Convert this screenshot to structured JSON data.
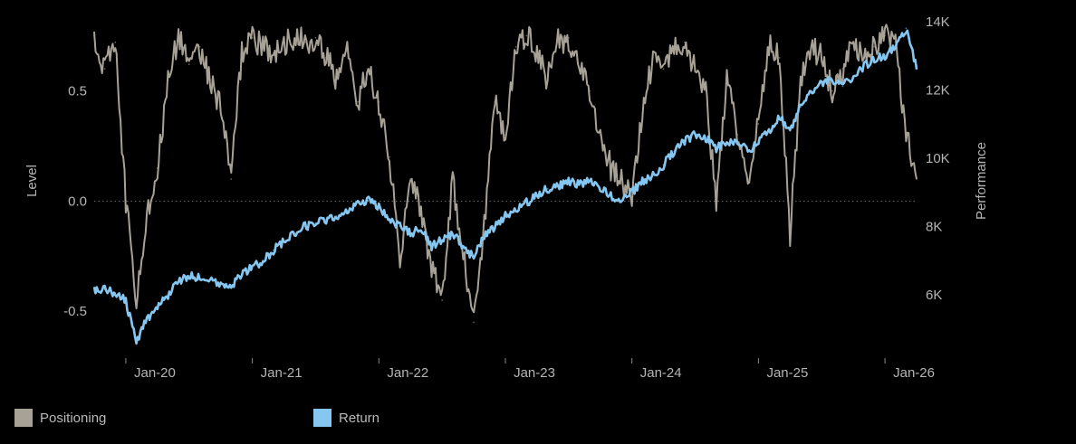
{
  "chart_data": {
    "type": "line",
    "title": "",
    "y_left": {
      "label": "Level",
      "ticks": [
        0.5,
        0.0,
        -0.5
      ],
      "tick_labels": [
        "0.5",
        "0.0",
        "-0.5"
      ],
      "range": [
        -0.7,
        0.83
      ]
    },
    "y_right": {
      "label": "Performance",
      "ticks": [
        6000,
        8000,
        10000,
        12000,
        14000
      ],
      "tick_labels": [
        "6K",
        "8K",
        "10K",
        "12K",
        "14K"
      ],
      "range": [
        4220,
        14100
      ]
    },
    "x": {
      "ticks": [
        "2020-01",
        "2021-01",
        "2022-01",
        "2023-01",
        "2024-01",
        "2025-01",
        "2026-01"
      ],
      "tick_labels": [
        "Jan-20",
        "Jan-21",
        "Jan-22",
        "Jan-23",
        "Jan-24",
        "Jan-25",
        "Jan-26"
      ],
      "range": [
        "2019-10",
        "2026-04"
      ]
    },
    "zero_line": {
      "value": 0.0,
      "style": "dotted"
    },
    "grid": false,
    "legend_position": "bottom-left",
    "series": [
      {
        "name": "Positioning",
        "axis": "left",
        "color": "#a8a196",
        "points": [
          [
            "2019-10",
            0.75
          ],
          [
            "2019-11",
            0.6
          ],
          [
            "2019-12",
            0.72
          ],
          [
            "2020-01",
            0.0
          ],
          [
            "2020-02",
            -0.45
          ],
          [
            "2020-03",
            -0.05
          ],
          [
            "2020-04",
            0.15
          ],
          [
            "2020-05",
            0.55
          ],
          [
            "2020-06",
            0.75
          ],
          [
            "2020-07",
            0.62
          ],
          [
            "2020-08",
            0.7
          ],
          [
            "2020-09",
            0.55
          ],
          [
            "2020-10",
            0.42
          ],
          [
            "2020-11",
            0.1
          ],
          [
            "2020-12",
            0.68
          ],
          [
            "2021-01",
            0.74
          ],
          [
            "2021-02",
            0.7
          ],
          [
            "2021-03",
            0.67
          ],
          [
            "2021-04",
            0.72
          ],
          [
            "2021-05",
            0.74
          ],
          [
            "2021-06",
            0.72
          ],
          [
            "2021-07",
            0.74
          ],
          [
            "2021-08",
            0.65
          ],
          [
            "2021-09",
            0.55
          ],
          [
            "2021-10",
            0.68
          ],
          [
            "2021-11",
            0.45
          ],
          [
            "2021-12",
            0.6
          ],
          [
            "2022-01",
            0.45
          ],
          [
            "2022-02",
            0.2
          ],
          [
            "2022-03",
            -0.25
          ],
          [
            "2022-04",
            0.1
          ],
          [
            "2022-05",
            -0.05
          ],
          [
            "2022-06",
            -0.3
          ],
          [
            "2022-07",
            -0.45
          ],
          [
            "2022-08",
            0.1
          ],
          [
            "2022-09",
            -0.25
          ],
          [
            "2022-10",
            -0.55
          ],
          [
            "2022-11",
            -0.1
          ],
          [
            "2022-12",
            0.45
          ],
          [
            "2023-01",
            0.3
          ],
          [
            "2023-02",
            0.7
          ],
          [
            "2023-03",
            0.75
          ],
          [
            "2023-04",
            0.68
          ],
          [
            "2023-05",
            0.55
          ],
          [
            "2023-06",
            0.72
          ],
          [
            "2023-07",
            0.74
          ],
          [
            "2023-08",
            0.6
          ],
          [
            "2023-09",
            0.5
          ],
          [
            "2023-10",
            0.3
          ],
          [
            "2023-11",
            0.15
          ],
          [
            "2023-12",
            0.1
          ],
          [
            "2024-01",
            0.0
          ],
          [
            "2024-02",
            0.4
          ],
          [
            "2024-03",
            0.65
          ],
          [
            "2024-04",
            0.6
          ],
          [
            "2024-05",
            0.7
          ],
          [
            "2024-06",
            0.72
          ],
          [
            "2024-07",
            0.6
          ],
          [
            "2024-08",
            0.5
          ],
          [
            "2024-09",
            0.0
          ],
          [
            "2024-10",
            0.55
          ],
          [
            "2024-11",
            0.3
          ],
          [
            "2024-12",
            0.1
          ],
          [
            "2025-01",
            0.35
          ],
          [
            "2025-02",
            0.7
          ],
          [
            "2025-03",
            0.65
          ],
          [
            "2025-04",
            -0.15
          ],
          [
            "2025-05",
            0.55
          ],
          [
            "2025-06",
            0.7
          ],
          [
            "2025-07",
            0.65
          ],
          [
            "2025-08",
            0.5
          ],
          [
            "2025-09",
            0.6
          ],
          [
            "2025-10",
            0.72
          ],
          [
            "2025-11",
            0.65
          ],
          [
            "2025-12",
            0.7
          ],
          [
            "2026-01",
            0.75
          ],
          [
            "2026-02",
            0.72
          ],
          [
            "2026-03",
            0.3
          ],
          [
            "2026-04",
            0.1
          ]
        ]
      },
      {
        "name": "Return",
        "axis": "right",
        "color": "#86c7f2",
        "points": [
          [
            "2019-10",
            6100
          ],
          [
            "2019-11",
            6150
          ],
          [
            "2019-12",
            6050
          ],
          [
            "2020-01",
            5800
          ],
          [
            "2020-02",
            4600
          ],
          [
            "2020-03",
            5300
          ],
          [
            "2020-04",
            5600
          ],
          [
            "2020-05",
            6000
          ],
          [
            "2020-06",
            6400
          ],
          [
            "2020-07",
            6550
          ],
          [
            "2020-08",
            6500
          ],
          [
            "2020-09",
            6450
          ],
          [
            "2020-10",
            6350
          ],
          [
            "2020-11",
            6200
          ],
          [
            "2020-12",
            6600
          ],
          [
            "2021-01",
            6800
          ],
          [
            "2021-02",
            7000
          ],
          [
            "2021-03",
            7300
          ],
          [
            "2021-04",
            7550
          ],
          [
            "2021-05",
            7800
          ],
          [
            "2021-06",
            8000
          ],
          [
            "2021-07",
            8100
          ],
          [
            "2021-08",
            8200
          ],
          [
            "2021-09",
            8300
          ],
          [
            "2021-10",
            8450
          ],
          [
            "2021-11",
            8700
          ],
          [
            "2021-12",
            8750
          ],
          [
            "2022-01",
            8600
          ],
          [
            "2022-02",
            8200
          ],
          [
            "2022-03",
            8000
          ],
          [
            "2022-04",
            7800
          ],
          [
            "2022-05",
            7900
          ],
          [
            "2022-06",
            7400
          ],
          [
            "2022-07",
            7600
          ],
          [
            "2022-08",
            7800
          ],
          [
            "2022-09",
            7400
          ],
          [
            "2022-10",
            7100
          ],
          [
            "2022-11",
            7700
          ],
          [
            "2022-12",
            8000
          ],
          [
            "2023-01",
            8300
          ],
          [
            "2023-02",
            8450
          ],
          [
            "2023-03",
            8700
          ],
          [
            "2023-04",
            8900
          ],
          [
            "2023-05",
            9100
          ],
          [
            "2023-06",
            9200
          ],
          [
            "2023-07",
            9300
          ],
          [
            "2023-08",
            9250
          ],
          [
            "2023-09",
            9350
          ],
          [
            "2023-10",
            9100
          ],
          [
            "2023-11",
            8900
          ],
          [
            "2023-12",
            8700
          ],
          [
            "2024-01",
            9000
          ],
          [
            "2024-02",
            9300
          ],
          [
            "2024-03",
            9500
          ],
          [
            "2024-04",
            9800
          ],
          [
            "2024-05",
            10200
          ],
          [
            "2024-06",
            10500
          ],
          [
            "2024-07",
            10700
          ],
          [
            "2024-08",
            10600
          ],
          [
            "2024-09",
            10300
          ],
          [
            "2024-10",
            10400
          ],
          [
            "2024-11",
            10500
          ],
          [
            "2024-12",
            10200
          ],
          [
            "2025-01",
            10500
          ],
          [
            "2025-02",
            10800
          ],
          [
            "2025-03",
            11200
          ],
          [
            "2025-04",
            10800
          ],
          [
            "2025-05",
            11500
          ],
          [
            "2025-06",
            11900
          ],
          [
            "2025-07",
            12200
          ],
          [
            "2025-08",
            12300
          ],
          [
            "2025-09",
            12100
          ],
          [
            "2025-10",
            12400
          ],
          [
            "2025-11",
            12700
          ],
          [
            "2025-12",
            12900
          ],
          [
            "2026-01",
            13000
          ],
          [
            "2026-02",
            13300
          ],
          [
            "2026-03",
            13800
          ],
          [
            "2026-04",
            12600
          ]
        ]
      }
    ]
  },
  "legend": {
    "items": [
      {
        "label": "Positioning",
        "color": "#a8a196"
      },
      {
        "label": "Return",
        "color": "#86c7f2"
      }
    ]
  }
}
